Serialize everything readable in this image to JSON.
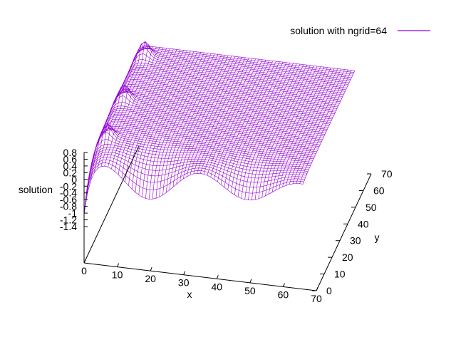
{
  "chart_data": {
    "type": "surface",
    "title": "",
    "xlabel": "x",
    "ylabel": "y",
    "zlabel": "solution",
    "xlim": [
      0,
      70
    ],
    "ylim": [
      0,
      70
    ],
    "zlim": [
      -1.4,
      0.8
    ],
    "x_ticks": [
      "0",
      "10",
      "20",
      "30",
      "40",
      "50",
      "60",
      "70"
    ],
    "y_ticks": [
      "0",
      "10",
      "20",
      "30",
      "40",
      "50",
      "60",
      "70"
    ],
    "z_ticks": [
      "0.8",
      "0.6",
      "0.4",
      "0.2",
      "0",
      "-0.2",
      "-0.4",
      "-0.6",
      "-0.8",
      "-1",
      "-1.2",
      "-1.4"
    ],
    "legend_position": "top-right",
    "series": [
      {
        "name": "solution with ngrid=64",
        "color": "#9400d3",
        "grid_points": 64
      }
    ]
  }
}
